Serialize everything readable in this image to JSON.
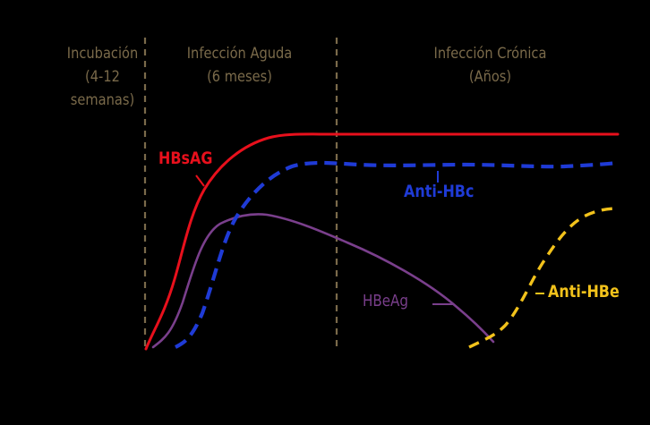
{
  "phases": [
    {
      "lines": [
        "Incubación",
        "(4-12",
        "semanas)"
      ]
    },
    {
      "lines": [
        "Infección Aguda",
        "(6 meses)"
      ]
    },
    {
      "lines": [
        "Infección Crónica",
        "(Años)"
      ]
    }
  ],
  "curves": {
    "hbsag": {
      "label": "HBsAG",
      "color": "#e8101c"
    },
    "anti_hbc": {
      "label": "Anti-HBc",
      "color": "#1f3bd6"
    },
    "hbeag": {
      "label": "HBeAg",
      "color": "#7a3f8c"
    },
    "anti_hbe": {
      "label": "Anti-HBe",
      "color": "#f2c21b"
    }
  },
  "colors": {
    "background": "#000000",
    "phase_text": "#7a6a4a",
    "divider": "#7a6a4a"
  }
}
